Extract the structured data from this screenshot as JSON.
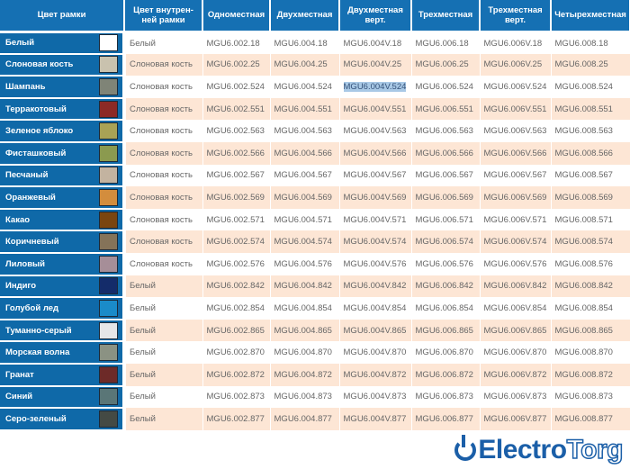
{
  "headers": [
    "Цвет рамки",
    "Цвет внутрен-ней рамки",
    "Одноместная",
    "Двухместная",
    "Двухместная верт.",
    "Трехместная",
    "Трехместная верт.",
    "Четырехместная"
  ],
  "selected_cell": {
    "row": 2,
    "col": 3
  },
  "colors": {
    "header": "#1570b3",
    "left_column": "#0f69a8",
    "alt_row": "#fde6d5",
    "selection": "#a9c9e6"
  },
  "rows": [
    {
      "name": "Белый",
      "swatch": "#ffffff",
      "cells": [
        "Белый",
        "MGU6.002.18",
        "MGU6.004.18",
        "MGU6.004V.18",
        "MGU6.006.18",
        "MGU6.006V.18",
        "MGU6.008.18"
      ]
    },
    {
      "name": "Слоновая кость",
      "swatch": "#c9c2ae",
      "cells": [
        "Слоновая кость",
        "MGU6.002.25",
        "MGU6.004.25",
        "MGU6.004V.25",
        "MGU6.006.25",
        "MGU6.006V.25",
        "MGU6.008.25"
      ]
    },
    {
      "name": "Шампань",
      "swatch": "#7f8477",
      "cells": [
        "Слоновая кость",
        "MGU6.002.524",
        "MGU6.004.524",
        "MGU6.004V.524",
        "MGU6.006.524",
        "MGU6.006V.524",
        "MGU6.008.524"
      ]
    },
    {
      "name": "Терракотовый",
      "swatch": "#8c2a26",
      "cells": [
        "Слоновая кость",
        "MGU6.002.551",
        "MGU6.004.551",
        "MGU6.004V.551",
        "MGU6.006.551",
        "MGU6.006V.551",
        "MGU6.008.551"
      ]
    },
    {
      "name": "Зеленое яблоко",
      "swatch": "#a9a255",
      "cells": [
        "Слоновая кость",
        "MGU6.002.563",
        "MGU6.004.563",
        "MGU6.004V.563",
        "MGU6.006.563",
        "MGU6.006V.563",
        "MGU6.008.563"
      ]
    },
    {
      "name": "Фисташковый",
      "swatch": "#8b9a4f",
      "cells": [
        "Слоновая кость",
        "MGU6.002.566",
        "MGU6.004.566",
        "MGU6.004V.566",
        "MGU6.006.566",
        "MGU6.006V.566",
        "MGU6.008.566"
      ]
    },
    {
      "name": "Песчаный",
      "swatch": "#c3b3a0",
      "cells": [
        "Слоновая кость",
        "MGU6.002.567",
        "MGU6.004.567",
        "MGU6.004V.567",
        "MGU6.006.567",
        "MGU6.006V.567",
        "MGU6.008.567"
      ]
    },
    {
      "name": "Оранжевый",
      "swatch": "#d38d3d",
      "cells": [
        "Слоновая кость",
        "MGU6.002.569",
        "MGU6.004.569",
        "MGU6.004V.569",
        "MGU6.006.569",
        "MGU6.006V.569",
        "MGU6.008.569"
      ]
    },
    {
      "name": "Какао",
      "swatch": "#7a4510",
      "cells": [
        "Слоновая кость",
        "MGU6.002.571",
        "MGU6.004.571",
        "MGU6.004V.571",
        "MGU6.006.571",
        "MGU6.006V.571",
        "MGU6.008.571"
      ]
    },
    {
      "name": "Коричневый",
      "swatch": "#857359",
      "cells": [
        "Слоновая кость",
        "MGU6.002.574",
        "MGU6.004.574",
        "MGU6.004V.574",
        "MGU6.006.574",
        "MGU6.006V.574",
        "MGU6.008.574"
      ]
    },
    {
      "name": "Лиловый",
      "swatch": "#a68e98",
      "cells": [
        "Слоновая кость",
        "MGU6.002.576",
        "MGU6.004.576",
        "MGU6.004V.576",
        "MGU6.006.576",
        "MGU6.006V.576",
        "MGU6.008.576"
      ]
    },
    {
      "name": "Индиго",
      "swatch": "#142c6a",
      "cells": [
        "Белый",
        "MGU6.002.842",
        "MGU6.004.842",
        "MGU6.004V.842",
        "MGU6.006.842",
        "MGU6.006V.842",
        "MGU6.008.842"
      ]
    },
    {
      "name": "Голубой лед",
      "swatch": "#1a8bc9",
      "cells": [
        "Белый",
        "MGU6.002.854",
        "MGU6.004.854",
        "MGU6.004V.854",
        "MGU6.006.854",
        "MGU6.006V.854",
        "MGU6.008.854"
      ]
    },
    {
      "name": "Туманно-серый",
      "swatch": "#e6e6e8",
      "cells": [
        "Белый",
        "MGU6.002.865",
        "MGU6.004.865",
        "MGU6.004V.865",
        "MGU6.006.865",
        "MGU6.006V.865",
        "MGU6.008.865"
      ]
    },
    {
      "name": "Морская волна",
      "swatch": "#8b9283",
      "cells": [
        "Белый",
        "MGU6.002.870",
        "MGU6.004.870",
        "MGU6.004V.870",
        "MGU6.006.870",
        "MGU6.006V.870",
        "MGU6.008.870"
      ]
    },
    {
      "name": "Гранат",
      "swatch": "#6d2a28",
      "cells": [
        "Белый",
        "MGU6.002.872",
        "MGU6.004.872",
        "MGU6.004V.872",
        "MGU6.006.872",
        "MGU6.006V.872",
        "MGU6.008.872"
      ]
    },
    {
      "name": "Синий",
      "swatch": "#5a7677",
      "cells": [
        "Белый",
        "MGU6.002.873",
        "MGU6.004.873",
        "MGU6.004V.873",
        "MGU6.006.873",
        "MGU6.006V.873",
        "MGU6.008.873"
      ]
    },
    {
      "name": "Серо-зеленый",
      "swatch": "#444a44",
      "cells": [
        "Белый",
        "MGU6.002.877",
        "MGU6.004.877",
        "MGU6.004V.877",
        "MGU6.006.877",
        "MGU6.006V.877",
        "MGU6.008.877"
      ]
    }
  ],
  "watermark": {
    "part1": "Electro",
    "part2": "Torg",
    "icon": "power-icon"
  }
}
